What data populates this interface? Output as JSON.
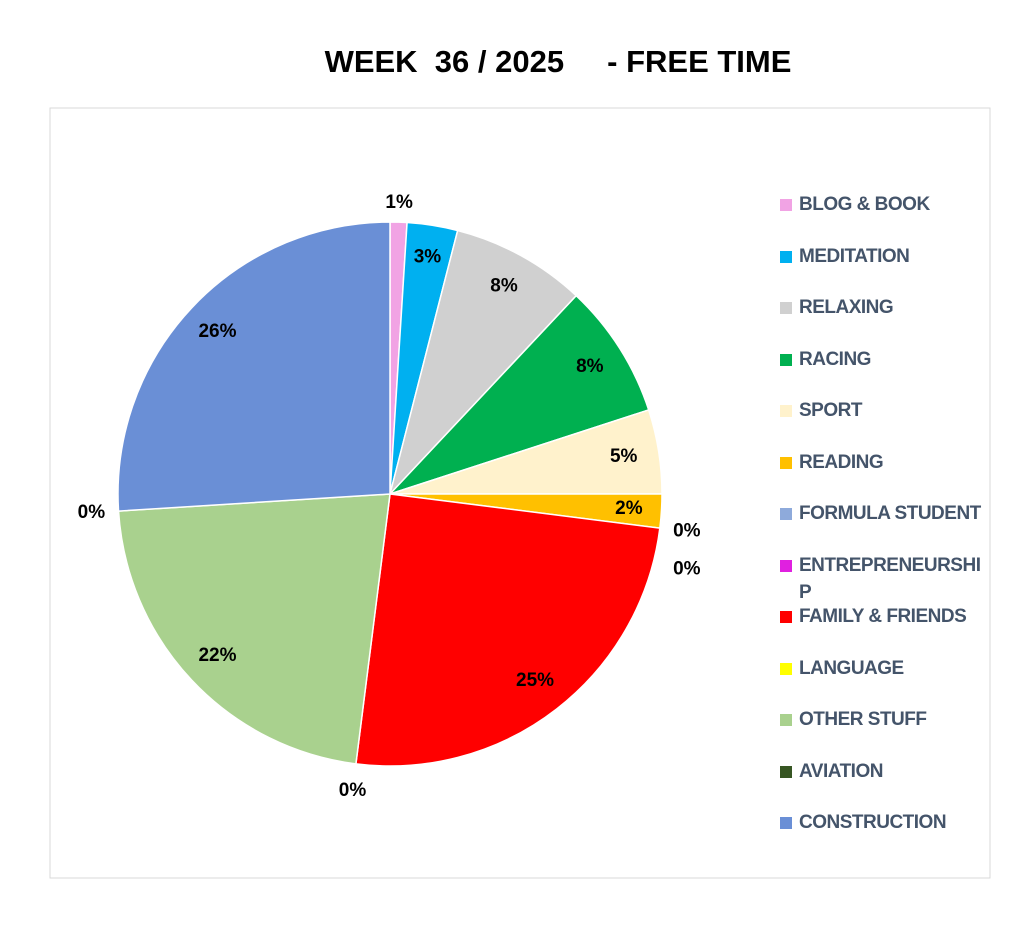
{
  "chart_data": {
    "type": "pie",
    "title": "WEEK  36 / 2025     - FREE TIME",
    "categories": [
      "BLOG & BOOK",
      "MEDITATION",
      "RELAXING",
      "RACING",
      "SPORT",
      "READING",
      "FORMULA STUDENT",
      "ENTREPRENEURSHIP",
      "FAMILY & FRIENDS",
      "LANGUAGE",
      "OTHER STUFF",
      "AVIATION",
      "CONSTRUCTION"
    ],
    "values": [
      1,
      3,
      8,
      8,
      5,
      2,
      0,
      0,
      25,
      0,
      22,
      0,
      26
    ],
    "colors": [
      "#f1a3e4",
      "#00b0f0",
      "#d0d0d0",
      "#00b050",
      "#fff2cc",
      "#ffc000",
      "#8eaadb",
      "#e020e0",
      "#ff0000",
      "#ffff00",
      "#a9d18e",
      "#375623",
      "#6a8fd6"
    ],
    "legend": "right"
  }
}
